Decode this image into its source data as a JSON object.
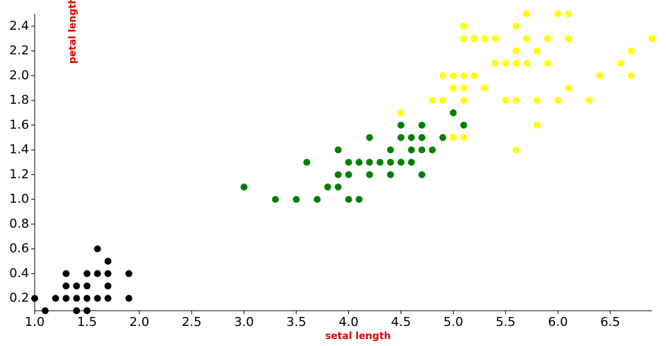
{
  "chart_data": {
    "type": "scatter",
    "x_label": "setal length",
    "y_label": "petal length",
    "xlim": [
      1.0,
      6.9
    ],
    "ylim": [
      0.1,
      2.5
    ],
    "xticks": [
      {
        "value": 1.0,
        "label": "1.0"
      },
      {
        "value": 1.5,
        "label": "1.5"
      },
      {
        "value": 2.0,
        "label": "2.0"
      },
      {
        "value": 2.5,
        "label": "2.5"
      },
      {
        "value": 3.0,
        "label": "3.0"
      },
      {
        "value": 3.5,
        "label": "3.5"
      },
      {
        "value": 4.0,
        "label": "4.0"
      },
      {
        "value": 4.5,
        "label": "4.5"
      },
      {
        "value": 5.0,
        "label": "5.0"
      },
      {
        "value": 5.5,
        "label": "5.5"
      },
      {
        "value": 6.0,
        "label": "6.0"
      },
      {
        "value": 6.5,
        "label": "6.5"
      }
    ],
    "yticks": [
      0.2,
      0.4,
      0.6,
      0.8,
      {
        "value": 1.0,
        "label": "1.0"
      },
      1.2,
      1.4,
      1.6,
      1.8,
      {
        "value": 2.0,
        "label": "2.0"
      },
      2.2,
      2.4
    ],
    "series": [
      {
        "color": "#000000",
        "x": [
          1.0,
          1.1,
          1.2,
          1.3,
          1.3,
          1.3,
          1.4,
          1.4,
          1.4,
          1.5,
          1.5,
          1.5,
          1.5,
          1.6,
          1.6,
          1.6,
          1.7,
          1.7,
          1.7,
          1.7,
          1.9,
          1.9
        ],
        "values": [
          0.2,
          0.1,
          0.2,
          0.2,
          0.3,
          0.4,
          0.1,
          0.2,
          0.3,
          0.1,
          0.2,
          0.3,
          0.4,
          0.2,
          0.4,
          0.6,
          0.2,
          0.3,
          0.4,
          0.5,
          0.2,
          0.4
        ]
      },
      {
        "color": "#008000",
        "x": [
          3.0,
          3.3,
          3.5,
          3.6,
          3.7,
          3.8,
          3.9,
          3.9,
          3.9,
          4.0,
          4.0,
          4.0,
          4.1,
          4.1,
          4.2,
          4.2,
          4.2,
          4.3,
          4.4,
          4.4,
          4.4,
          4.5,
          4.5,
          4.5,
          4.6,
          4.6,
          4.6,
          4.7,
          4.7,
          4.7,
          4.7,
          4.8,
          4.9,
          5.0,
          5.1
        ],
        "values": [
          1.1,
          1.0,
          1.0,
          1.3,
          1.0,
          1.1,
          1.1,
          1.2,
          1.4,
          1.0,
          1.2,
          1.3,
          1.0,
          1.3,
          1.2,
          1.3,
          1.5,
          1.3,
          1.2,
          1.3,
          1.4,
          1.3,
          1.5,
          1.6,
          1.3,
          1.4,
          1.5,
          1.2,
          1.4,
          1.5,
          1.6,
          1.4,
          1.5,
          1.7,
          1.6
        ]
      },
      {
        "color": "#ffff00",
        "x": [
          4.5,
          4.8,
          4.9,
          4.9,
          5.0,
          5.0,
          5.0,
          5.1,
          5.1,
          5.1,
          5.1,
          5.1,
          5.1,
          5.2,
          5.2,
          5.3,
          5.3,
          5.4,
          5.4,
          5.5,
          5.5,
          5.6,
          5.6,
          5.6,
          5.6,
          5.6,
          5.7,
          5.7,
          5.7,
          5.8,
          5.8,
          5.8,
          5.9,
          5.9,
          6.0,
          6.0,
          6.1,
          6.1,
          6.1,
          6.3,
          6.4,
          6.6,
          6.7,
          6.7,
          6.9
        ],
        "values": [
          1.7,
          1.8,
          1.8,
          2.0,
          1.5,
          1.9,
          2.0,
          1.5,
          1.8,
          1.9,
          2.0,
          2.3,
          2.4,
          2.0,
          2.3,
          1.9,
          2.3,
          2.1,
          2.3,
          1.8,
          2.1,
          1.4,
          1.8,
          2.1,
          2.2,
          2.4,
          2.1,
          2.3,
          2.5,
          1.6,
          1.8,
          2.2,
          2.1,
          2.3,
          1.8,
          2.5,
          1.9,
          2.3,
          2.5,
          1.8,
          2.0,
          2.1,
          2.0,
          2.2,
          2.3
        ]
      }
    ]
  }
}
